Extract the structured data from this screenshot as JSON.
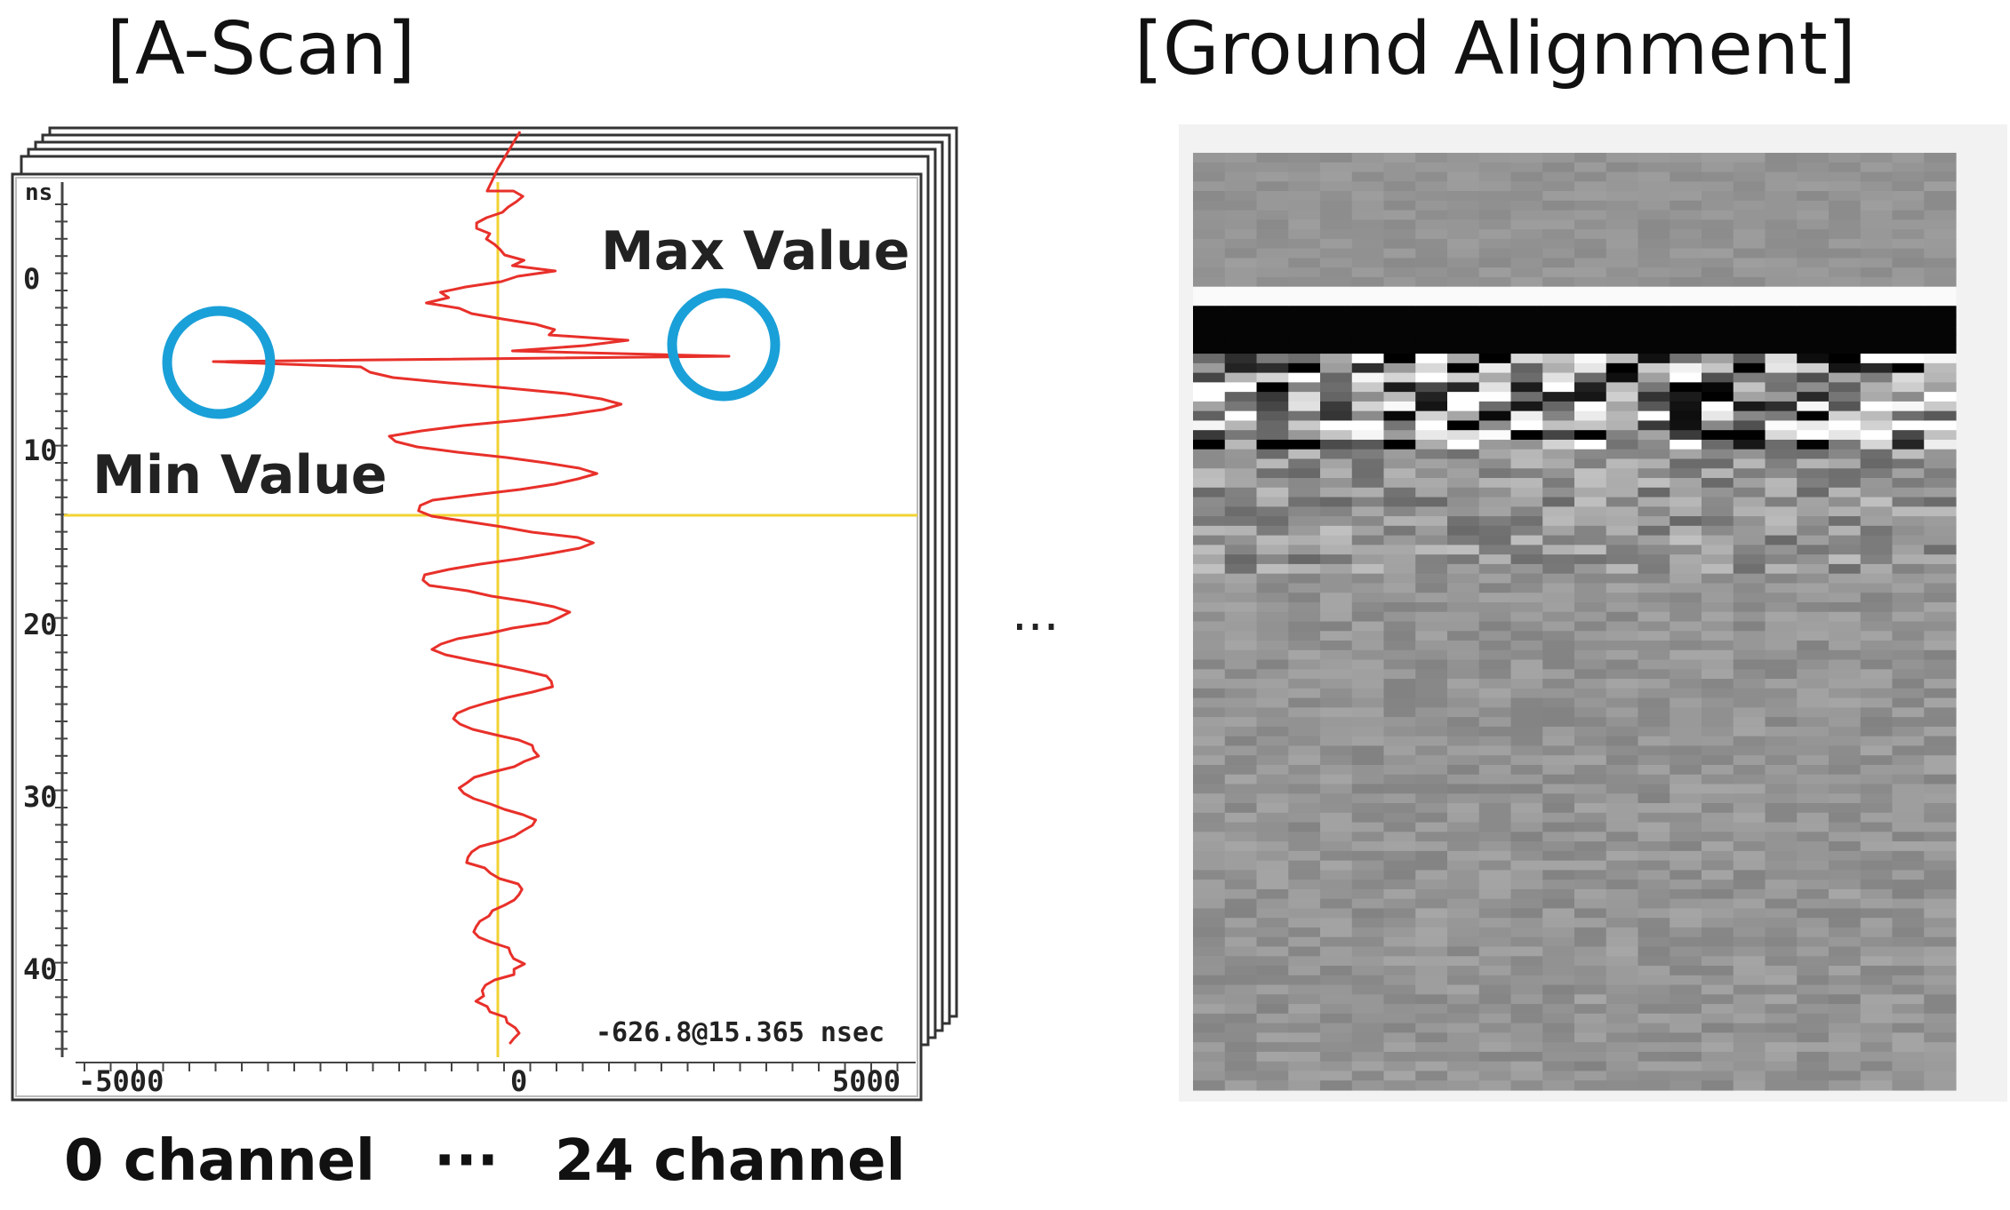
{
  "ascan": {
    "title": "[A-Scan]",
    "unit_label": "ns",
    "y_ticks": [
      "0",
      "10",
      "20",
      "30",
      "40"
    ],
    "x_ticks": [
      "-5000",
      "0",
      "5000"
    ],
    "max_label": "Max Value",
    "min_label": "Min Value",
    "readout": "-626.8@15.365 nsec",
    "colors": {
      "trace": "#e8302a",
      "cursor": "#f2d233",
      "marker": "#1aa0d8"
    }
  },
  "ground": {
    "title": "[Ground Alignment]"
  },
  "middle_dots": "...",
  "captions": {
    "first": "0 channel",
    "dots": "···",
    "last": "24 channel"
  }
}
